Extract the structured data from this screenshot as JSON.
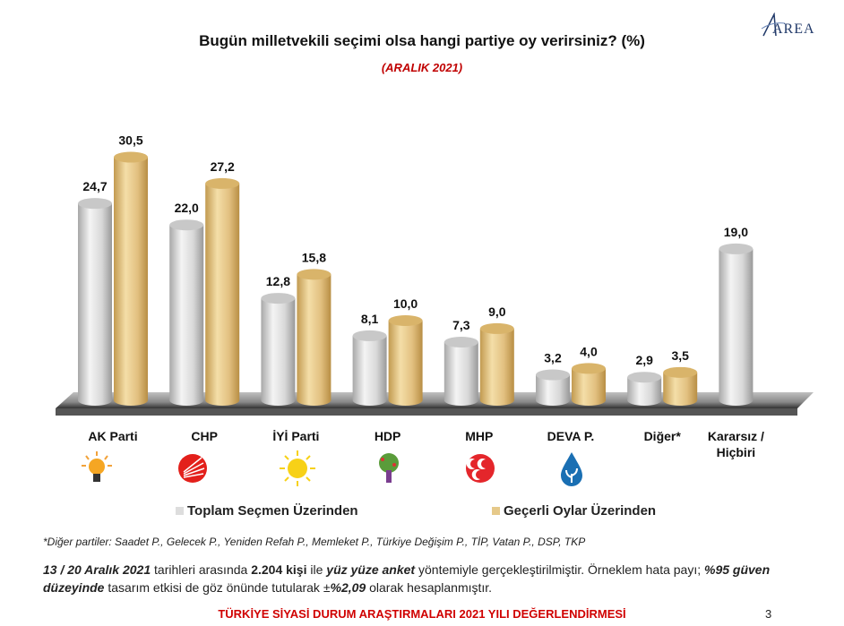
{
  "logo_text": "AREA",
  "chart_data": {
    "type": "bar",
    "title": "Bugün milletvekili seçimi olsa hangi partiye oy verirsiniz? (%)",
    "subtitle": "(ARALIK 2021)",
    "categories": [
      "AK Parti",
      "CHP",
      "İYİ Parti",
      "HDP",
      "MHP",
      "DEVA P.",
      "Diğer*",
      "Kararsız / Hiçbiri"
    ],
    "series": [
      {
        "name": "Toplam Seçmen Üzerinden",
        "color": "#d8d8d8",
        "values": [
          24.7,
          22.0,
          12.8,
          8.1,
          7.3,
          3.2,
          2.9,
          19.0
        ],
        "labels": [
          "24,7",
          "22,0",
          "12,8",
          "8,1",
          "7,3",
          "3,2",
          "2,9",
          "19,0"
        ]
      },
      {
        "name": "Geçerli Oylar Üzerinden",
        "color": "#e6c98a",
        "values": [
          30.5,
          27.2,
          15.8,
          10.0,
          9.0,
          4.0,
          3.5,
          null
        ],
        "labels": [
          "30,5",
          "27,2",
          "15,8",
          "10,0",
          "9,0",
          "4,0",
          "3,5",
          ""
        ]
      }
    ],
    "ylim": [
      0,
      35
    ],
    "legend": "bottom",
    "grid": false
  },
  "note": "*Diğer partiler: Saadet P., Gelecek P., Yeniden Refah P., Memleket P., Türkiye Değişim P., TİP, Vatan P., DSP, TKP",
  "para": {
    "p1": "13 / 20 Aralık 2021",
    "p2": " tarihleri arasında ",
    "p3": "2.204 kişi",
    "p4": " ile ",
    "p5": "yüz yüze anket",
    "p6": " yöntemiyle gerçekleştirilmiştir. Örneklem hata payı; ",
    "p7": "%95 güven düzeyinde",
    "p8": " tasarım etkisi de göz önünde tutularak ±",
    "p9": "%2,09",
    "p10": " olarak hesaplanmıştır."
  },
  "footer": "TÜRKİYE SİYASİ DURUM ARAŞTIRMALARI 2021 YILI DEĞERLENDİRMESİ",
  "page_number": "3",
  "icons": [
    "ak-parti-bulb-icon",
    "chp-six-arrows-icon",
    "iyi-sun-icon",
    "hdp-tree-icon",
    "mhp-crescents-icon",
    "deva-drop-icon"
  ]
}
